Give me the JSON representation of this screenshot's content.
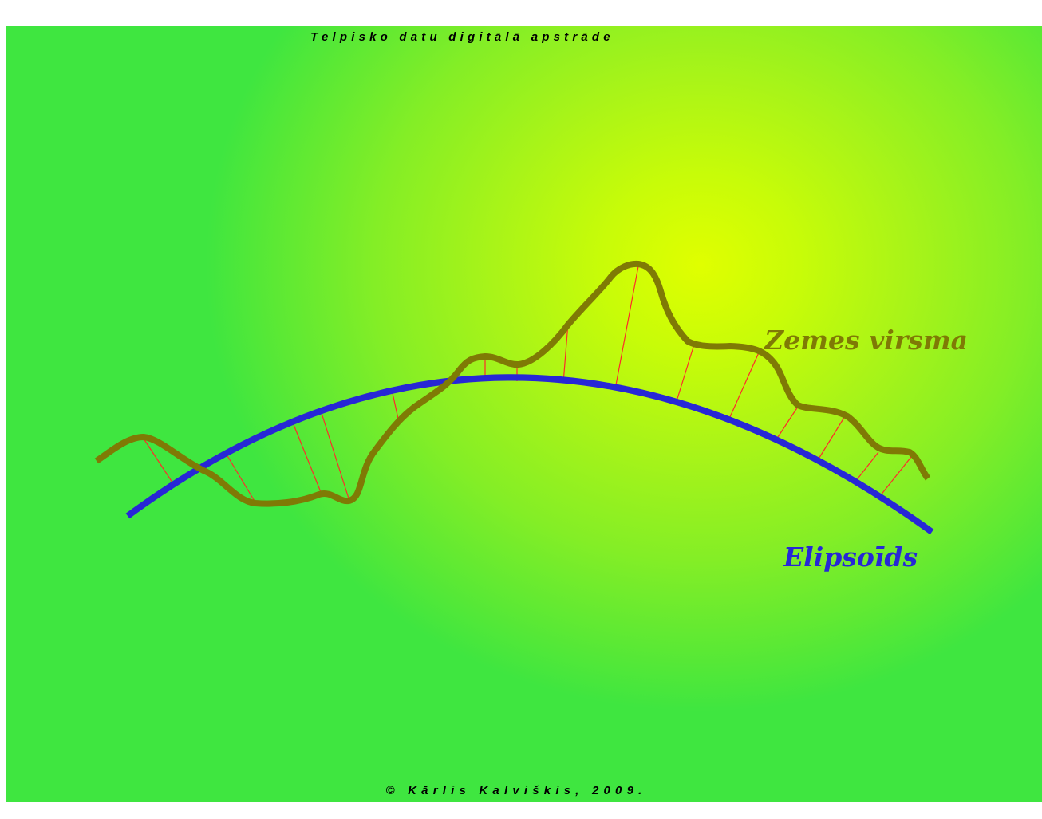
{
  "header": {
    "title": "Telpisko datu digitālā apstrāde"
  },
  "footer": {
    "text": "© Kārlis Kalviškis, 2009."
  },
  "diagram": {
    "surface_label": "Zemes virsma",
    "ellipsoid_label": "Elipsoīds"
  },
  "colors": {
    "surface": "#7f7a05",
    "ellipsoid": "#2727d6",
    "connectors": "#ff2a2a",
    "background_center": "#e0ff00",
    "background_edge": "#3fe640"
  }
}
